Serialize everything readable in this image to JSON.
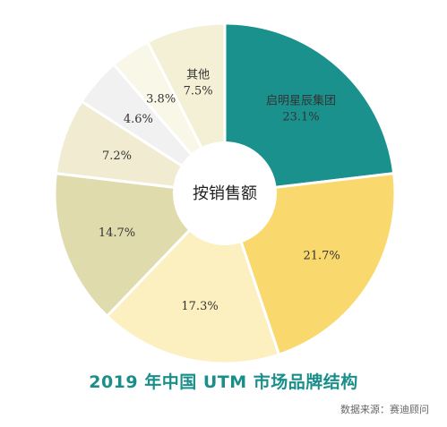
{
  "chart_data": {
    "type": "pie",
    "donut": true,
    "center_label": "按销售额",
    "title": "2019 年中国 UTM 市场品牌结构",
    "slices": [
      {
        "name": "启明星辰集团",
        "value": 23.1,
        "label": "23.1%",
        "color": "#1a918c",
        "text_color": "#222222"
      },
      {
        "name": "",
        "value": 21.7,
        "label": "21.7%",
        "color": "#f9d96e",
        "text_color": "#333333"
      },
      {
        "name": "",
        "value": 17.3,
        "label": "17.3%",
        "color": "#fcefc0",
        "text_color": "#333333"
      },
      {
        "name": "",
        "value": 14.7,
        "label": "14.7%",
        "color": "#e0dbad",
        "text_color": "#333333"
      },
      {
        "name": "",
        "value": 7.2,
        "label": "7.2%",
        "color": "#f0ebd1",
        "text_color": "#333333"
      },
      {
        "name": "",
        "value": 4.6,
        "label": "4.6%",
        "color": "#f1f1f1",
        "text_color": "#333333"
      },
      {
        "name": "",
        "value": 3.8,
        "label": "3.8%",
        "color": "#f9f7e7",
        "text_color": "#333333"
      },
      {
        "name": "其他",
        "value": 7.5,
        "label": "7.5%",
        "color": "#f3f0d6",
        "text_color": "#333333"
      }
    ]
  },
  "source": "数据来源：赛迪顾问"
}
